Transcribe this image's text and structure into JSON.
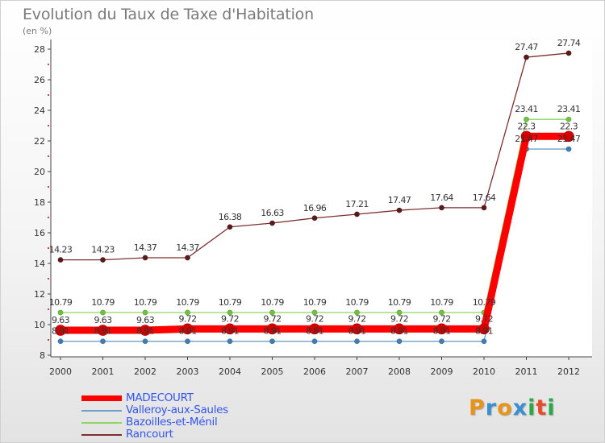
{
  "title": "Evolution du Taux de Taxe d'Habitation",
  "subtitle": "(en %)",
  "logo": {
    "text": "Proxiti",
    "letters": [
      {
        "ch": "P",
        "color": "#e8941a"
      },
      {
        "ch": "r",
        "color": "#3a8fd0"
      },
      {
        "ch": "o",
        "color": "#e8941a"
      },
      {
        "ch": "x",
        "color": "#3a8fd0"
      },
      {
        "ch": "i",
        "color": "#2aa84a"
      },
      {
        "ch": "t",
        "color": "#e84a2a"
      },
      {
        "ch": "i",
        "color": "#2aa84a"
      }
    ]
  },
  "chart_data": {
    "type": "line",
    "title": "Evolution du Taux de Taxe d'Habitation",
    "ylabel": "(en %)",
    "xlabel": "",
    "x": [
      "2000",
      "2001",
      "2002",
      "2003",
      "2004",
      "2005",
      "2006",
      "2007",
      "2008",
      "2009",
      "2010",
      "2011",
      "2012"
    ],
    "ylim": [
      8,
      28
    ],
    "yticks": [
      "8",
      "10",
      "12",
      "14",
      "16",
      "18",
      "20",
      "22",
      "24",
      "26",
      "28"
    ],
    "grid": false,
    "legend_position": "bottom-left",
    "series": [
      {
        "name": "Rancourt",
        "color": "#7b2f2f",
        "marker": "#5a1a1a",
        "values": [
          14.23,
          14.23,
          14.37,
          14.37,
          16.38,
          16.63,
          16.96,
          17.21,
          17.47,
          17.64,
          17.64,
          27.47,
          27.74
        ],
        "labels": [
          "14.23",
          "14.23",
          "14.37",
          "14.37",
          "16.38",
          "16.63",
          "16.96",
          "17.21",
          "17.47",
          "17.64",
          "17.64",
          "27.47",
          "27.74"
        ]
      },
      {
        "name": "Bazoilles-et-Ménil",
        "color": "#8fd660",
        "marker": "#6cc43a",
        "values": [
          10.79,
          10.79,
          10.79,
          10.79,
          10.79,
          10.79,
          10.79,
          10.79,
          10.79,
          10.79,
          10.79,
          23.41,
          23.41
        ],
        "labels": [
          "10.79",
          "10.79",
          "10.79",
          "10.79",
          "10.79",
          "10.79",
          "10.79",
          "10.79",
          "10.79",
          "10.79",
          "10.79",
          "23.41",
          "23.41"
        ]
      },
      {
        "name": "Valleroy-aux-Saules",
        "color": "#6fa0c8",
        "marker": "#3d7fb5",
        "values": [
          8.91,
          8.91,
          8.91,
          8.91,
          8.91,
          8.91,
          8.91,
          8.91,
          8.91,
          8.91,
          8.91,
          21.47,
          21.47
        ],
        "labels": [
          "8.91",
          "8.91",
          "8.91",
          "8.91",
          "8.91",
          "8.91",
          "8.91",
          "8.91",
          "8.91",
          "8.91",
          "8.91",
          "21.47",
          "21.47"
        ]
      },
      {
        "name": "MADECOURT",
        "color": "#ff0000",
        "marker": "#d40000",
        "values": [
          9.63,
          9.63,
          9.63,
          9.72,
          9.72,
          9.72,
          9.72,
          9.72,
          9.72,
          9.72,
          9.72,
          22.3,
          22.3
        ],
        "labels": [
          "9.63",
          "9.63",
          "9.63",
          "9.72",
          "9.72",
          "9.72",
          "9.72",
          "9.72",
          "9.72",
          "9.72",
          "9.72",
          "22.3",
          "22.3"
        ]
      }
    ],
    "legend": [
      {
        "name": "MADECOURT",
        "color": "#ff0000",
        "text_color": "#3355ee"
      },
      {
        "name": "Valleroy-aux-Saules",
        "color": "#6fa0c8",
        "text_color": "#3355ee"
      },
      {
        "name": "Bazoilles-et-Ménil",
        "color": "#8fd660",
        "text_color": "#3355ee"
      },
      {
        "name": "Rancourt",
        "color": "#7b2f2f",
        "text_color": "#3355ee"
      }
    ]
  }
}
